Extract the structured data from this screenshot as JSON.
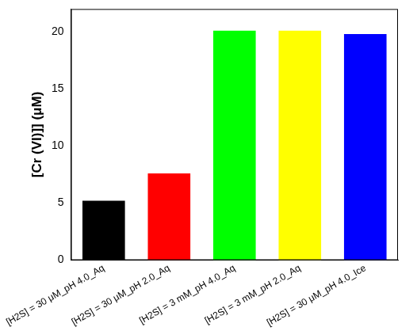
{
  "chart_data": {
    "type": "bar",
    "y_label": "[Cr (VI)]] (μM)",
    "categories": [
      "[H2S] = 30 μM_pH 4.0_Aq",
      "[H2S] = 30 μM_pH 2.0_Aq",
      "[H2S] = 3 mM_pH 4.0_Aq",
      "[H2S] = 3 mM_pH 2.0_Aq",
      "[H2S] = 30 μM_pH 4.0_Ice"
    ],
    "values": [
      5.2,
      7.6,
      20.1,
      20.1,
      19.8
    ],
    "colors": [
      "#000000",
      "#ff0000",
      "#00ff00",
      "#ffff00",
      "#0000ff"
    ],
    "ylim": [
      0,
      22
    ],
    "yticks": [
      0,
      5,
      10,
      15,
      20
    ],
    "grid": false
  }
}
